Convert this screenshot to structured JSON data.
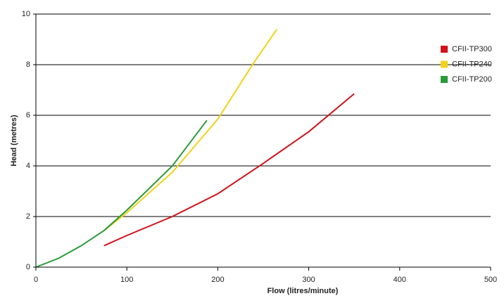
{
  "chart_data": {
    "type": "line",
    "x_label": "Flow (litres/minute)",
    "y_label": "Head (metres)",
    "xlim": [
      0,
      500
    ],
    "xticks": [
      0,
      100,
      200,
      300,
      400,
      500
    ],
    "ylim": [
      0,
      10
    ],
    "yticks": [
      0,
      2,
      4,
      6,
      8,
      10
    ],
    "grid": true,
    "series": [
      {
        "name": "CFII-TP300",
        "color": "#d0121b",
        "x": [
          75,
          100,
          150,
          200,
          250,
          300,
          350
        ],
        "values": [
          0.85,
          1.25,
          2.0,
          2.9,
          4.1,
          5.35,
          6.85
        ]
      },
      {
        "name": "CFII-TP240",
        "color": "#f0d21a",
        "x": [
          75,
          100,
          150,
          200,
          240,
          265
        ],
        "values": [
          1.45,
          2.15,
          3.75,
          5.85,
          8.1,
          9.4
        ]
      },
      {
        "name": "CFII-TP200",
        "color": "#2a9a3a",
        "x": [
          0,
          25,
          50,
          75,
          100,
          150,
          188
        ],
        "values": [
          0,
          0.35,
          0.85,
          1.45,
          2.25,
          4.0,
          5.8
        ]
      }
    ]
  }
}
